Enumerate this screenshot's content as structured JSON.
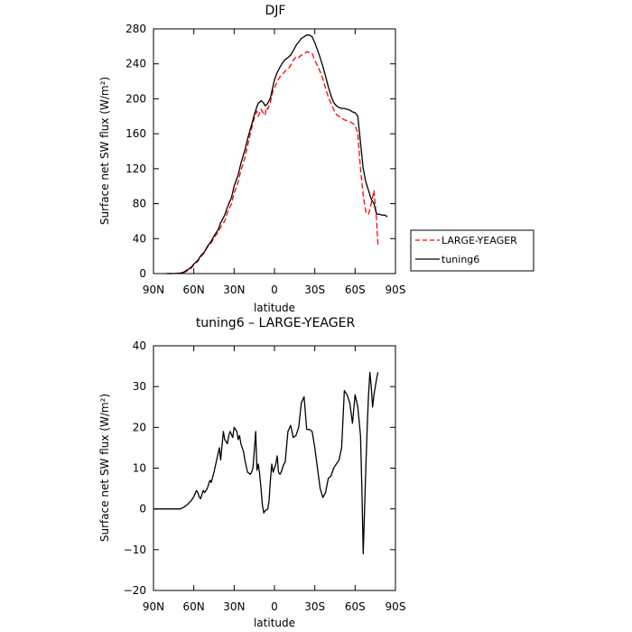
{
  "chart_data": [
    {
      "type": "line",
      "title": "DJF",
      "xlabel": "latitude",
      "ylabel": "Surface net SW flux (W/m²)",
      "xlim": [
        90,
        -90
      ],
      "ylim": [
        0,
        280
      ],
      "x_ticks": [
        90,
        60,
        30,
        0,
        -30,
        -60,
        -90
      ],
      "x_tick_labels": [
        "90N",
        "60N",
        "30N",
        "0",
        "30S",
        "60S",
        "90S"
      ],
      "y_ticks": [
        0,
        40,
        80,
        120,
        160,
        200,
        240,
        280
      ],
      "y_tick_labels": [
        "0",
        "40",
        "80",
        "120",
        "160",
        "200",
        "240",
        "280"
      ],
      "legend_position": "right",
      "series": [
        {
          "name": "LARGE-YEAGER",
          "color": "#ff0000",
          "dash": "dashed",
          "x": [
            80,
            75,
            70,
            67,
            65,
            62,
            60,
            57,
            55,
            52,
            50,
            47,
            45,
            42,
            40,
            37,
            35,
            32,
            30,
            27,
            25,
            22,
            20,
            18,
            16,
            15,
            13,
            12,
            11,
            10,
            8,
            7,
            6,
            5,
            3,
            2,
            1,
            0,
            -2,
            -4,
            -6,
            -8,
            -10,
            -12,
            -14,
            -16,
            -18,
            -20,
            -22,
            -24,
            -26,
            -28,
            -30,
            -32,
            -34,
            -36,
            -38,
            -40,
            -42,
            -44,
            -46,
            -48,
            -50,
            -52,
            -54,
            -56,
            -58,
            -60,
            -62,
            -64,
            -66,
            -68,
            -70,
            -72,
            -74,
            -76,
            -77
          ],
          "y": [
            0,
            0,
            0.5,
            1.5,
            3,
            6,
            10,
            14,
            19,
            24,
            30,
            35,
            41,
            47,
            53,
            60,
            70,
            80,
            92,
            105,
            118,
            132,
            146,
            160,
            172,
            178,
            186,
            180,
            184,
            188,
            183,
            181,
            190,
            188,
            196,
            203,
            210,
            212,
            220,
            225,
            228,
            232,
            234,
            238,
            244,
            248,
            247,
            250,
            251,
            254,
            253,
            252,
            244,
            238,
            231,
            223,
            212,
            202,
            195,
            188,
            182,
            180,
            178,
            176,
            175,
            174,
            172,
            170,
            160,
            120,
            90,
            70,
            68,
            80,
            95,
            60,
            33
          ]
        },
        {
          "name": "tuning6",
          "color": "#000000",
          "dash": "solid",
          "x": [
            80,
            75,
            70,
            67,
            65,
            62,
            60,
            57,
            55,
            52,
            50,
            47,
            45,
            42,
            40,
            37,
            35,
            32,
            30,
            27,
            25,
            22,
            20,
            18,
            16,
            15,
            13,
            12,
            11,
            10,
            8,
            7,
            6,
            5,
            3,
            2,
            1,
            0,
            -2,
            -4,
            -6,
            -8,
            -10,
            -12,
            -14,
            -16,
            -18,
            -20,
            -22,
            -24,
            -26,
            -28,
            -30,
            -32,
            -34,
            -36,
            -38,
            -40,
            -42,
            -44,
            -46,
            -48,
            -50,
            -52,
            -54,
            -56,
            -58,
            -60,
            -62,
            -64,
            -66,
            -68,
            -70,
            -72,
            -74,
            -76,
            -78,
            -80,
            -82,
            -84
          ],
          "y": [
            0,
            0,
            0.5,
            2,
            4,
            7,
            11,
            15,
            20,
            25,
            31,
            37,
            43,
            50,
            58,
            67,
            76,
            87,
            100,
            113,
            126,
            141,
            154,
            165,
            176,
            182,
            191,
            195,
            196,
            198,
            195,
            192,
            193,
            195,
            201,
            208,
            215,
            222,
            230,
            236,
            241,
            245,
            247,
            250,
            255,
            261,
            265,
            269,
            271,
            273,
            273,
            271,
            264,
            256,
            247,
            237,
            226,
            214,
            204,
            196,
            192,
            190,
            189,
            189,
            188,
            187,
            185,
            184,
            180,
            150,
            120,
            105,
            95,
            85,
            80,
            68,
            68,
            67,
            67,
            65
          ]
        }
      ]
    },
    {
      "type": "line",
      "title": "tuning6 – LARGE-YEAGER",
      "xlabel": "latitude",
      "ylabel": "Surface net SW flux (W/m²)",
      "xlim": [
        90,
        -90
      ],
      "ylim": [
        -20,
        40
      ],
      "x_ticks": [
        90,
        60,
        30,
        0,
        -30,
        -60,
        -90
      ],
      "x_tick_labels": [
        "90N",
        "60N",
        "30N",
        "0",
        "30S",
        "60S",
        "90S"
      ],
      "y_ticks": [
        -20,
        -10,
        0,
        10,
        20,
        30,
        40
      ],
      "y_tick_labels": [
        "−20",
        "−10",
        "0",
        "10",
        "20",
        "30",
        "40"
      ],
      "series": [
        {
          "name": "",
          "color": "#000000",
          "dash": "solid",
          "x": [
            90,
            80,
            75,
            70,
            67,
            65,
            62,
            60,
            58,
            57,
            56,
            55,
            53,
            52,
            50,
            49,
            48,
            47,
            45,
            44,
            43,
            41,
            40,
            38,
            37,
            35,
            34,
            33,
            31,
            30,
            28,
            27,
            26,
            25,
            23,
            22,
            20,
            18,
            17,
            16,
            14,
            13,
            12,
            11,
            10,
            9,
            8,
            7,
            5,
            4,
            3,
            2,
            1,
            -1,
            -2,
            -3,
            -4,
            -5,
            -6,
            -7,
            -8,
            -10,
            -12,
            -14,
            -16,
            -18,
            -20,
            -22,
            -24,
            -26,
            -28,
            -30,
            -32,
            -34,
            -36,
            -38,
            -40,
            -42,
            -44,
            -46,
            -48,
            -50,
            -52,
            -54,
            -56,
            -58,
            -60,
            -62,
            -64,
            -65,
            -66,
            -67,
            -68,
            -69,
            -70,
            -71,
            -72,
            -73,
            -74,
            -75,
            -76,
            -77
          ],
          "y": [
            0,
            0,
            0,
            0,
            0.5,
            1,
            2,
            3,
            4.5,
            4,
            3,
            2.5,
            4.5,
            4,
            5,
            6,
            7,
            6.5,
            9,
            10.5,
            12,
            15,
            12,
            19,
            17,
            16,
            18,
            19,
            17.5,
            20,
            19,
            17,
            18,
            16,
            14,
            12,
            9,
            8.5,
            9,
            10,
            19,
            9.5,
            11,
            8.5,
            5,
            1,
            -1,
            -0.5,
            0,
            2,
            7,
            11,
            9,
            11,
            13,
            9,
            8.5,
            9,
            10,
            11,
            11.5,
            19,
            20.5,
            17.5,
            18,
            20,
            26,
            27.5,
            19.5,
            19.5,
            19,
            15,
            10,
            5,
            2.8,
            4,
            7.5,
            8,
            10,
            11,
            12,
            15,
            29,
            28,
            26,
            21,
            28,
            25,
            18,
            5,
            -11,
            0,
            10,
            20,
            28,
            33.5,
            30,
            25,
            28,
            30,
            32,
            33.5
          ]
        }
      ]
    }
  ]
}
